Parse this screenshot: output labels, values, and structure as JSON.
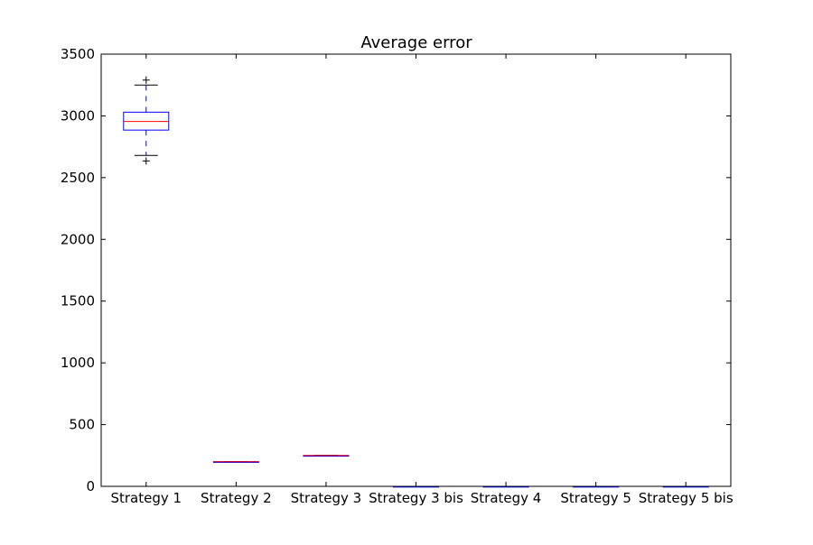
{
  "chart_data": {
    "type": "box",
    "title": "Average error",
    "xlabel": "",
    "ylabel": "",
    "ylim": [
      0,
      3500
    ],
    "yticks": [
      0,
      500,
      1000,
      1500,
      2000,
      2500,
      3000,
      3500
    ],
    "categories": [
      "Strategy 1",
      "Strategy 2",
      "Strategy 3",
      "Strategy 3 bis",
      "Strategy 4",
      "Strategy 5",
      "Strategy 5 bis"
    ],
    "boxes": [
      {
        "whisker_low": 2680,
        "q1": 2885,
        "median": 2955,
        "q3": 3030,
        "whisker_high": 3250,
        "outliers": [
          2635,
          3290
        ]
      },
      {
        "whisker_low": 197,
        "q1": 198,
        "median": 199,
        "q3": 200,
        "whisker_high": 201,
        "outliers": []
      },
      {
        "whisker_low": 247,
        "q1": 248,
        "median": 249,
        "q3": 250,
        "whisker_high": 251,
        "outliers": []
      },
      {
        "whisker_low": 0,
        "q1": 0,
        "median": 0,
        "q3": 0,
        "whisker_high": 0,
        "outliers": []
      },
      {
        "whisker_low": 0,
        "q1": 0,
        "median": 0,
        "q3": 0,
        "whisker_high": 0,
        "outliers": []
      },
      {
        "whisker_low": 0,
        "q1": 0,
        "median": 0,
        "q3": 0,
        "whisker_high": 0,
        "outliers": []
      },
      {
        "whisker_low": 0,
        "q1": 0,
        "median": 0,
        "q3": 0,
        "whisker_high": 0,
        "outliers": []
      }
    ],
    "grid": false,
    "legend": "none",
    "colors": {
      "box": "#0000ff",
      "median": "#ff0000",
      "whisker_cap": "#000000",
      "outlier": "#000000",
      "axes": "#000000",
      "background": "#ffffff"
    }
  }
}
